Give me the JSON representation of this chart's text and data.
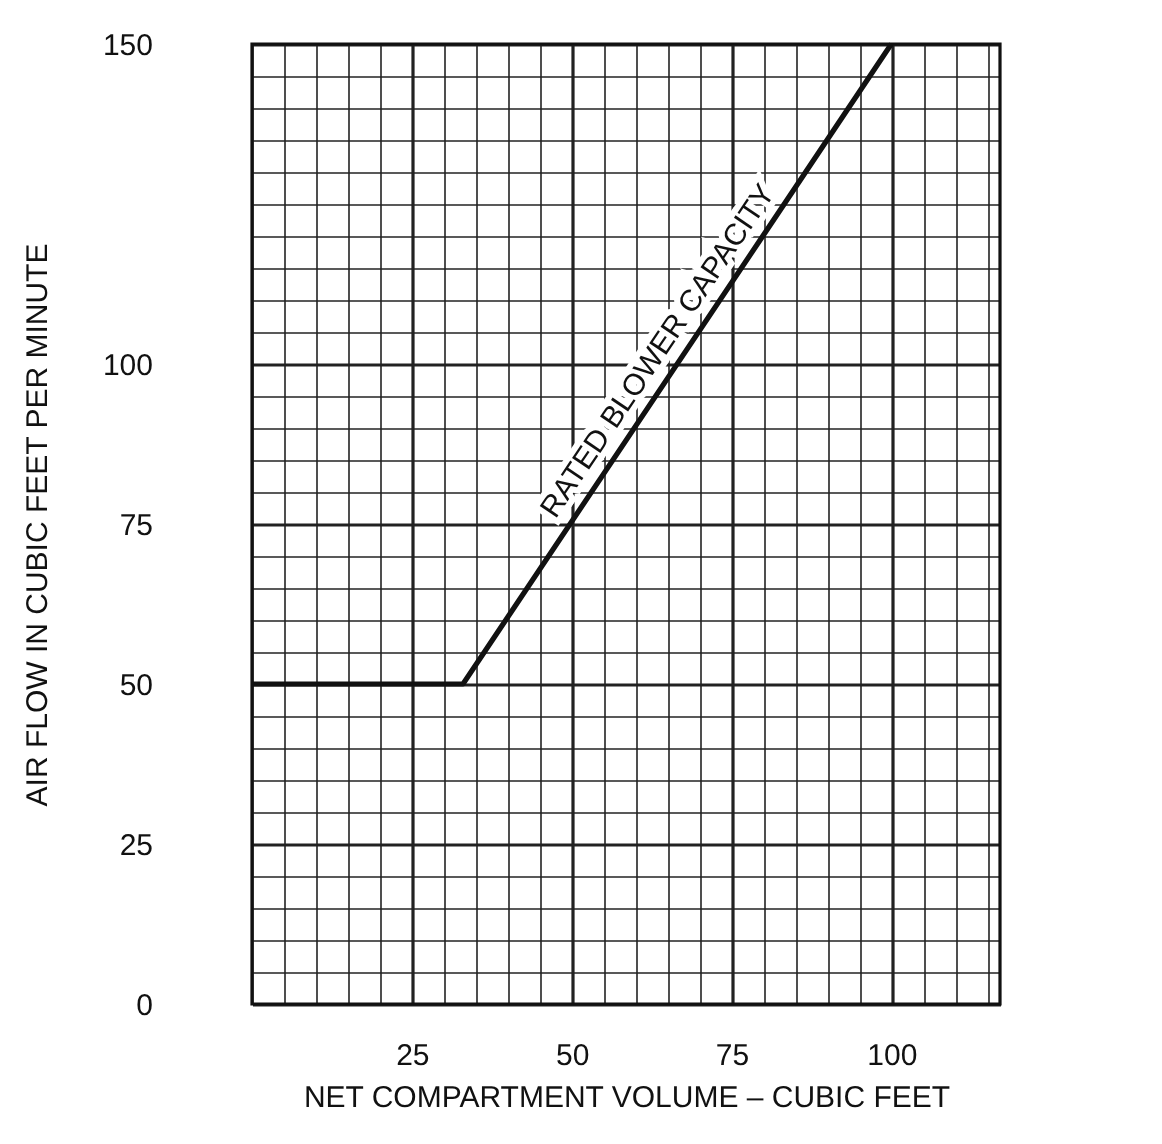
{
  "chart_data": {
    "type": "line",
    "xlabel": "NET COMPARTMENT VOLUME – CUBIC FEET",
    "ylabel": "AIR FLOW IN CUBIC FEET PER MINUTE",
    "x": [
      0,
      33,
      100
    ],
    "series": [
      {
        "color": "#111111",
        "values": [
          50,
          50,
          150
        ]
      }
    ],
    "annotations": [
      {
        "text": "RATED BLOWER CAPACITY",
        "x": 66.5,
        "y": 100
      }
    ],
    "xlim": [
      0,
      117
    ],
    "xticks": [
      {
        "value": 0,
        "label": null
      },
      {
        "value": 5,
        "label": null
      },
      {
        "value": 10,
        "label": null
      },
      {
        "value": 15,
        "label": null
      },
      {
        "value": 20,
        "label": null
      },
      25,
      {
        "value": 30,
        "label": null
      },
      {
        "value": 35,
        "label": null
      },
      {
        "value": 40,
        "label": null
      },
      {
        "value": 45,
        "label": null
      },
      50,
      {
        "value": 55,
        "label": null
      },
      {
        "value": 60,
        "label": null
      },
      {
        "value": 65,
        "label": null
      },
      {
        "value": 70,
        "label": null
      },
      75,
      {
        "value": 80,
        "label": null
      },
      {
        "value": 85,
        "label": null
      },
      {
        "value": 90,
        "label": null
      },
      {
        "value": 95,
        "label": null
      },
      100,
      {
        "value": 105,
        "label": null
      },
      {
        "value": 110,
        "label": null
      },
      {
        "value": 115,
        "label": null
      }
    ],
    "ylim": [
      0,
      150
    ],
    "yticks": [
      0,
      {
        "value": 5,
        "label": null
      },
      {
        "value": 10,
        "label": null
      },
      {
        "value": 15,
        "label": null
      },
      {
        "value": 20,
        "label": null
      },
      25,
      {
        "value": 30,
        "label": null
      },
      {
        "value": 35,
        "label": null
      },
      {
        "value": 40,
        "label": null
      },
      {
        "value": 45,
        "label": null
      },
      50,
      {
        "value": 55,
        "label": null
      },
      {
        "value": 60,
        "label": null
      },
      {
        "value": 65,
        "label": null
      },
      {
        "value": 70,
        "label": null
      },
      75,
      {
        "value": 80,
        "label": null
      },
      {
        "value": 85,
        "label": null
      },
      {
        "value": 90,
        "label": null
      },
      {
        "value": 95,
        "label": null
      },
      100,
      {
        "value": 105,
        "label": null
      },
      {
        "value": 110,
        "label": null
      },
      {
        "value": 115,
        "label": null
      },
      {
        "value": 120,
        "label": null
      },
      {
        "value": 125,
        "label": null
      },
      {
        "value": 130,
        "label": null
      },
      {
        "value": 135,
        "label": null
      },
      {
        "value": 140,
        "label": null
      },
      {
        "value": 145,
        "label": null
      },
      150
    ],
    "grid": true,
    "legend": false,
    "marker": "none",
    "line_style": "solid"
  }
}
